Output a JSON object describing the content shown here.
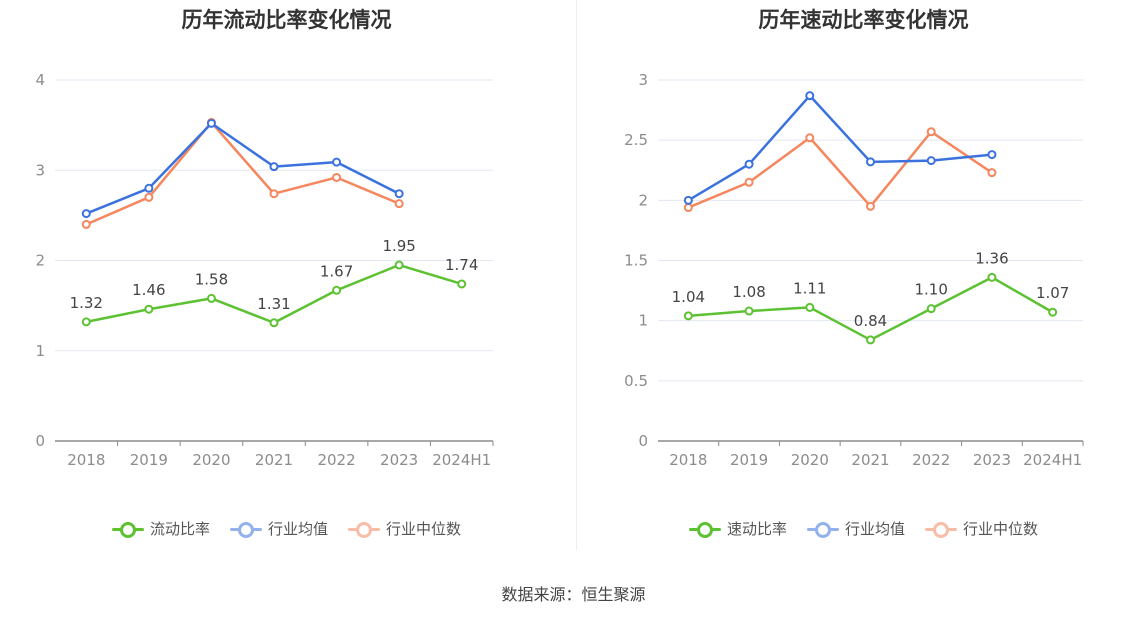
{
  "source": "数据来源：恒生聚源",
  "chart_data": [
    {
      "type": "line",
      "title": "历年流动比率变化情况",
      "categories": [
        "2018",
        "2019",
        "2020",
        "2021",
        "2022",
        "2023",
        "2024H1"
      ],
      "ylim": [
        0,
        4
      ],
      "yticks": [
        0,
        1,
        2,
        3,
        4
      ],
      "ytick_labels": [
        "0",
        "1",
        "2",
        "3",
        "4"
      ],
      "grid": true,
      "legend_position": "bottom",
      "series": [
        {
          "name": "流动比率",
          "color": "#5cc232",
          "values": [
            1.32,
            1.46,
            1.58,
            1.31,
            1.67,
            1.95,
            1.74
          ],
          "labels": [
            "1.32",
            "1.46",
            "1.58",
            "1.31",
            "1.67",
            "1.95",
            "1.74"
          ]
        },
        {
          "name": "行业均值",
          "color": "#3b72df",
          "values": [
            2.52,
            2.8,
            3.52,
            3.04,
            3.09,
            2.74,
            null
          ]
        },
        {
          "name": "行业中位数",
          "color": "#f5865e",
          "values": [
            2.4,
            2.7,
            3.53,
            2.74,
            2.92,
            2.63,
            null
          ]
        }
      ]
    },
    {
      "type": "line",
      "title": "历年速动比率变化情况",
      "categories": [
        "2018",
        "2019",
        "2020",
        "2021",
        "2022",
        "2023",
        "2024H1"
      ],
      "ylim": [
        0,
        3
      ],
      "yticks": [
        0,
        0.5,
        1,
        1.5,
        2,
        2.5,
        3
      ],
      "ytick_labels": [
        "0",
        "0.5",
        "1",
        "1.5",
        "2",
        "2.5",
        "3"
      ],
      "grid": true,
      "legend_position": "bottom",
      "series": [
        {
          "name": "速动比率",
          "color": "#5cc232",
          "values": [
            1.04,
            1.08,
            1.11,
            0.84,
            1.1,
            1.36,
            1.07
          ],
          "labels": [
            "1.04",
            "1.08",
            "1.11",
            "0.84",
            "1.10",
            "1.36",
            "1.07"
          ]
        },
        {
          "name": "行业均值",
          "color": "#3b72df",
          "values": [
            2.0,
            2.3,
            2.87,
            2.32,
            2.33,
            2.38,
            null
          ]
        },
        {
          "name": "行业中位数",
          "color": "#f5865e",
          "values": [
            1.94,
            2.15,
            2.52,
            1.95,
            2.57,
            2.23,
            null
          ]
        }
      ]
    }
  ]
}
